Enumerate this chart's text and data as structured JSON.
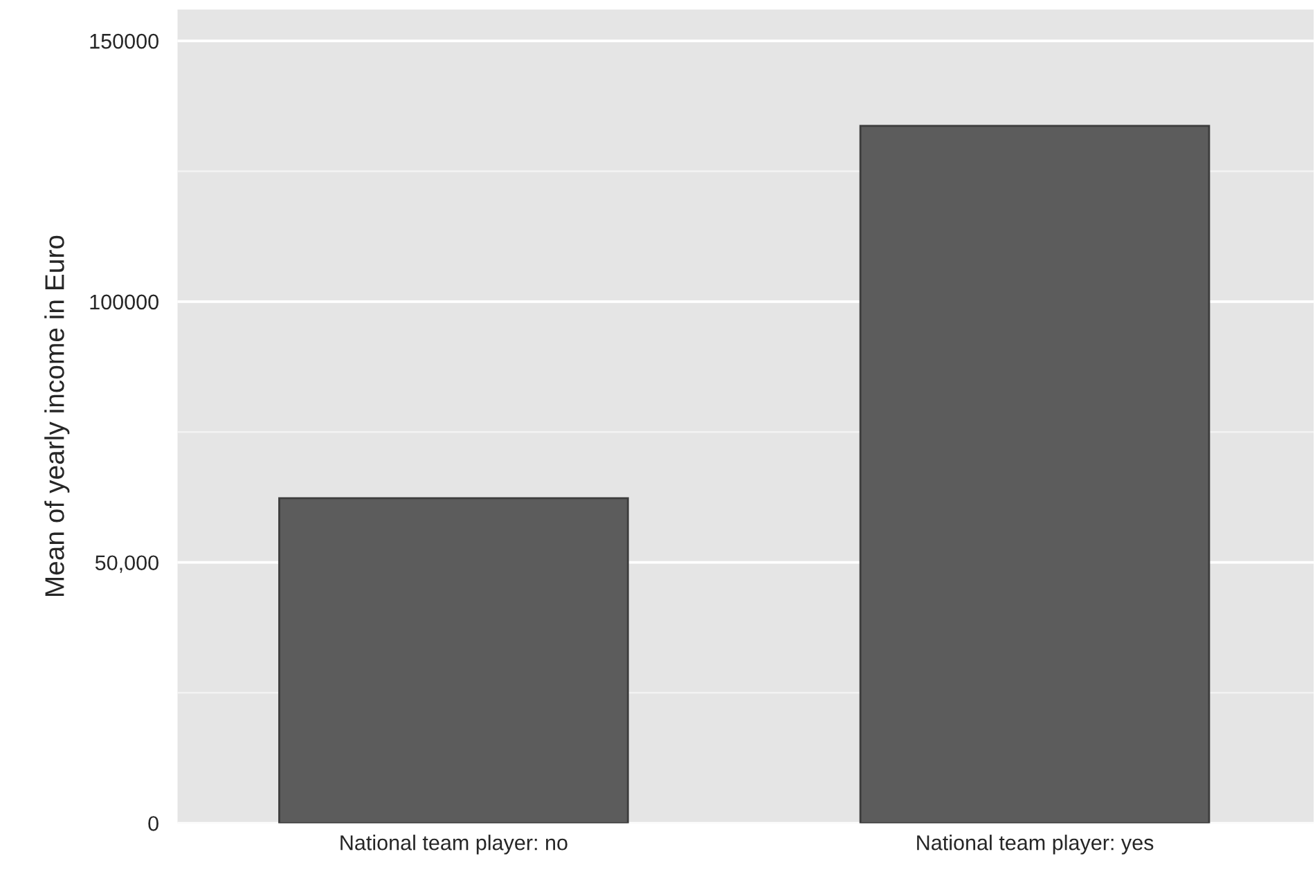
{
  "chart_data": {
    "type": "bar",
    "ylabel": "Mean of yearly income in Euro",
    "categories": [
      "National team player: no",
      "National team player: yes"
    ],
    "values": [
      62300,
      133700
    ],
    "color": "#5c5c5c",
    "ylim": [
      0,
      156000
    ],
    "yticks": [
      0,
      {
        "value": 25000,
        "label": null
      },
      {
        "value": 50000,
        "label": "50,000"
      },
      {
        "value": 75000,
        "label": null
      },
      100000,
      {
        "value": 125000,
        "label": null
      },
      150000
    ],
    "grid": "y"
  }
}
